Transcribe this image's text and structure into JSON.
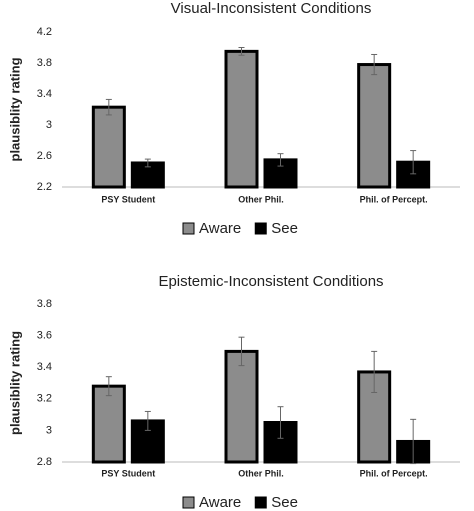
{
  "chart_data": [
    {
      "type": "bar",
      "title": "Visual-Inconsistent Conditions",
      "ylabel": "plausiblity rating",
      "categories": [
        "PSY Student",
        "Other Phil.",
        "Phil. of Percept."
      ],
      "series": [
        {
          "name": "Aware",
          "color": "#8c8c8c",
          "values": [
            3.23,
            3.95,
            3.78
          ],
          "errors": [
            0.1,
            0.05,
            0.13
          ]
        },
        {
          "name": "See",
          "color": "#000000",
          "values": [
            2.51,
            2.55,
            2.52
          ],
          "errors": [
            0.05,
            0.08,
            0.15
          ]
        }
      ],
      "ylim": [
        2.2,
        4.2
      ],
      "yticks": [
        2.2,
        2.6,
        3,
        3.4,
        3.8,
        4.2
      ],
      "legend": "bottom"
    },
    {
      "type": "bar",
      "title": "Epistemic-Inconsistent Conditions",
      "ylabel": "plausiblity rating",
      "categories": [
        "PSY Student",
        "Other Phil.",
        "Phil. of Percept."
      ],
      "series": [
        {
          "name": "Aware",
          "color": "#8c8c8c",
          "values": [
            3.28,
            3.5,
            3.37
          ],
          "errors": [
            0.06,
            0.09,
            0.13
          ]
        },
        {
          "name": "See",
          "color": "#000000",
          "values": [
            3.06,
            3.05,
            2.93
          ],
          "errors": [
            0.06,
            0.1,
            0.14
          ]
        }
      ],
      "ylim": [
        2.8,
        3.8
      ],
      "yticks": [
        2.8,
        3,
        3.2,
        3.4,
        3.6,
        3.8
      ],
      "legend": "bottom"
    }
  ]
}
